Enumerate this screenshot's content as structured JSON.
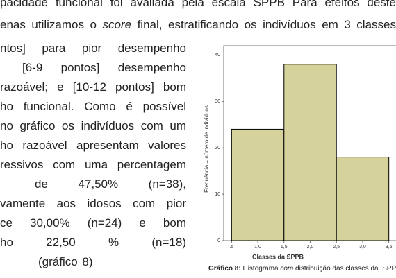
{
  "header": {
    "lines": [
      [
        "pacidade funcional foi avaliada pela escala SPPB Para efeitos deste"
      ],
      [
        "enas utilizamos o ",
        "score",
        " final, estratificando os indivíduos em 3 classes"
      ]
    ]
  },
  "body": {
    "lines": [
      "ntos] para pior desempenho",
      "[6-9 pontos] desempenho",
      "razoável; e [10-12 pontos] bom",
      "ho funcional. Como é possível",
      "no gráfico os indivíduos com um",
      "ho razoável apresentam valores",
      "ressivos com uma percentagem",
      "de 47,50% (n=38),",
      "vamente aos idosos com pior",
      "ce 30,00% (n=24) e bom",
      "ho 22,50 % (n=18)",
      "(gráfico 8)"
    ]
  },
  "caption": {
    "label": "Gráfico 8:",
    "parts": [
      " Histograma ",
      "com",
      " distribuição das classes da  SPPB"
    ]
  },
  "chart_data": {
    "type": "histogram",
    "xlabel": "Classes da SPPB",
    "ylabel": "Frequência = número de indivíduos",
    "bins": [
      0.5,
      1.5,
      2.5,
      3.5
    ],
    "values": [
      24,
      38,
      18
    ],
    "color": "#d6d29b",
    "xlim": [
      0.35,
      3.65
    ],
    "ylim": [
      0,
      42
    ],
    "xticks": [
      {
        "value": 0.5,
        "label": ".5"
      },
      {
        "value": 1,
        "label": "1,0"
      },
      {
        "value": 1.5,
        "label": "1,5"
      },
      {
        "value": 2,
        "label": "2,0"
      },
      {
        "value": 2.5,
        "label": "2,5"
      },
      {
        "value": 3,
        "label": "3,0"
      },
      {
        "value": 3.5,
        "label": "3,5"
      }
    ],
    "yticks": [
      0,
      10,
      20,
      30,
      40
    ]
  }
}
